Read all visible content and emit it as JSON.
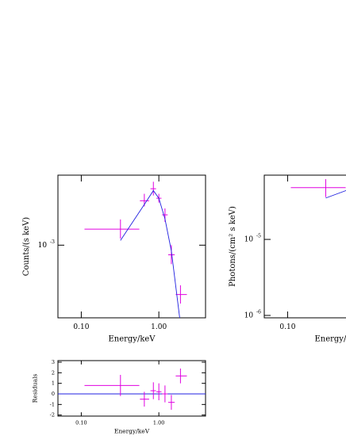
{
  "chart_data": [
    {
      "type": "spectrum",
      "xlabel": "Energy/keV",
      "ylabel": "Counts/(s keV)",
      "xlog": true,
      "ylog": true,
      "xlim": [
        0.05,
        4
      ],
      "ylim": [
        0.00035,
        0.00275
      ],
      "xticks": [
        {
          "value": 0.1,
          "label": "0.10"
        },
        {
          "value": 1,
          "label": "1.00"
        }
      ],
      "yticks": [
        {
          "value": 0.001,
          "label": "10",
          "exponent": "-3"
        }
      ],
      "series": [
        {
          "name": "data",
          "color": "#e000e0",
          "x": [
            0.32,
            0.65,
            0.85,
            1.0,
            1.2,
            1.45,
            1.9
          ],
          "x_low": [
            0.11,
            0.57,
            0.78,
            0.93,
            1.1,
            1.32,
            1.65
          ],
          "x_high": [
            0.56,
            0.75,
            0.92,
            1.08,
            1.3,
            1.6,
            2.3
          ],
          "values": [
            0.00126,
            0.0019,
            0.00226,
            0.00197,
            0.00155,
            0.00087,
            0.00049
          ],
          "y_low": [
            0.0011,
            0.00175,
            0.00205,
            0.00185,
            0.0014,
            0.00076,
            0.00043
          ],
          "y_high": [
            0.00145,
            0.0021,
            0.0025,
            0.0021,
            0.0017,
            0.001,
            0.00056
          ]
        },
        {
          "name": "model",
          "color": "#2020e0",
          "x": [
            0.32,
            0.65,
            0.85,
            1.0,
            1.2,
            1.45,
            1.9
          ],
          "values": [
            0.00107,
            0.0018,
            0.0022,
            0.00197,
            0.00146,
            0.00092,
            0.00032
          ]
        }
      ]
    },
    {
      "type": "spectrum",
      "xlabel": "Energy/keV",
      "ylabel": "Photons/(cm² s keV)",
      "xlog": true,
      "ylog": true,
      "xlim": [
        0.05,
        4
      ],
      "ylim": [
        9.3e-07,
        7e-05
      ],
      "xticks": [
        {
          "value": 0.1,
          "label": "0.10"
        }
      ],
      "yticks": [
        {
          "value": 1e-05,
          "label": "10",
          "exponent": "-5"
        },
        {
          "value": 1e-06,
          "label": "10",
          "exponent": "-6"
        }
      ],
      "series": [
        {
          "name": "data",
          "color": "#e000e0",
          "x": [
            0.31
          ],
          "x_low": [
            0.11
          ],
          "x_high": [
            0.56
          ],
          "values": [
            4.8e-05
          ],
          "y_low": [
            3.6e-05
          ],
          "y_high": [
            6.2e-05
          ]
        },
        {
          "name": "model",
          "color": "#2020e0",
          "x": [
            0.31,
            0.57
          ],
          "values": [
            3.5e-05,
            4.4e-05
          ]
        }
      ]
    },
    {
      "type": "residuals",
      "xlabel": "Energy/keV",
      "ylabel": "Residuals",
      "xlog": true,
      "ylog": false,
      "xlim": [
        0.05,
        4
      ],
      "ylim": [
        -2.1,
        3.15
      ],
      "zero_line": 0,
      "xticks": [
        {
          "value": 0.1,
          "label": "0.10"
        },
        {
          "value": 1,
          "label": "1.00"
        }
      ],
      "yticks": [
        -2,
        -1,
        0,
        1,
        2,
        3
      ],
      "series": [
        {
          "name": "data",
          "color": "#e000e0",
          "x": [
            0.32,
            0.65,
            0.85,
            1.0,
            1.2,
            1.45,
            1.9
          ],
          "x_low": [
            0.11,
            0.57,
            0.78,
            0.93,
            1.1,
            1.32,
            1.65
          ],
          "x_high": [
            0.56,
            0.75,
            0.92,
            1.08,
            1.3,
            1.6,
            2.3
          ],
          "values": [
            0.8,
            -0.5,
            0.3,
            0.2,
            0.0,
            -0.8,
            1.7
          ],
          "y_low": [
            -0.2,
            -1.2,
            -0.5,
            -0.6,
            -0.8,
            -1.5,
            1.0
          ],
          "y_high": [
            1.8,
            0.2,
            1.1,
            1.0,
            0.8,
            -0.1,
            2.4
          ]
        }
      ]
    }
  ]
}
